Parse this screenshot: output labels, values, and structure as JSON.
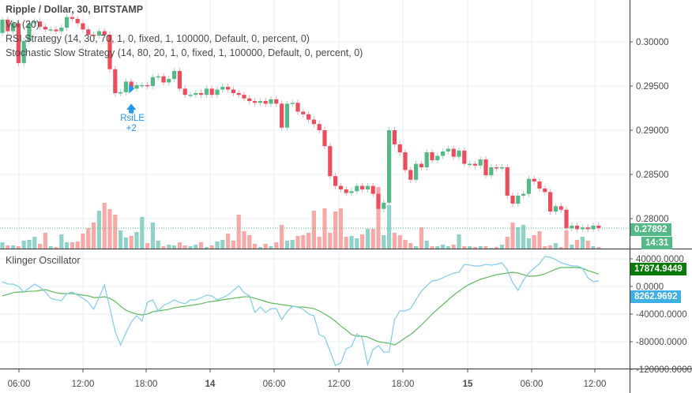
{
  "legend": {
    "title": "Ripple / Dollar, 30, BITSTAMP",
    "vol": "Vol (20)",
    "rsi_strategy": "RSI Strategy (14, 30, 70, 1, 0, fixed, 1, 100000, Default, 0, percent, 0)",
    "stoch_strategy": "Stochastic Slow Strategy (14, 80, 20, 1, 0, fixed, 1, 100000, Default, 0, percent, 0)",
    "oscillator": "Klinger Oscillator"
  },
  "colors": {
    "up": "#53b987",
    "down": "#eb4d5c",
    "vol_up": "#8fd3c8",
    "vol_down": "#f7a9a7",
    "ko": "#7fcbef",
    "signal": "#5fb85f",
    "marker": "#2196f3",
    "grid": "#e9eff3",
    "osc_value_tag": "#0a7a0a",
    "osc_ko_tag": "#3fb0e3"
  },
  "chart_data": [
    {
      "type": "candlestick",
      "price_axis": {
        "ticks": [
          "0.30000",
          "0.29500",
          "0.29000",
          "0.28500",
          "0.28000"
        ],
        "tick_values": [
          0.3,
          0.295,
          0.29,
          0.285,
          0.28
        ]
      },
      "time_axis": {
        "ticks": [
          {
            "label": "06:00",
            "bold": false
          },
          {
            "label": "12:00",
            "bold": false
          },
          {
            "label": "18:00",
            "bold": false
          },
          {
            "label": "14",
            "bold": true
          },
          {
            "label": "06:00",
            "bold": false
          },
          {
            "label": "12:00",
            "bold": false
          },
          {
            "label": "18:00",
            "bold": false
          },
          {
            "label": "15",
            "bold": true
          },
          {
            "label": "06:00",
            "bold": false
          },
          {
            "label": "12:00",
            "bold": false
          }
        ]
      },
      "open": [
        0.301,
        0.3025,
        0.3012,
        0.3021,
        0.2976,
        0.3001,
        0.3021,
        0.3023,
        0.3017,
        0.3014,
        0.3014,
        0.3012,
        0.3016,
        0.3028,
        0.3026,
        0.3021,
        0.3014,
        0.3008,
        0.3007,
        0.3012,
        0.3008,
        0.2969,
        0.2942,
        0.2943,
        0.2955,
        0.2947,
        0.2951,
        0.2951,
        0.295,
        0.296,
        0.2961,
        0.2954,
        0.2958,
        0.2967,
        0.2947,
        0.294,
        0.294,
        0.2942,
        0.294,
        0.2947,
        0.294,
        0.2946,
        0.2949,
        0.2946,
        0.2942,
        0.294,
        0.2936,
        0.2933,
        0.2931,
        0.2933,
        0.293,
        0.2935,
        0.293,
        0.2903,
        0.293,
        0.2931,
        0.2921,
        0.2918,
        0.2912,
        0.2907,
        0.29,
        0.2882,
        0.2848,
        0.2837,
        0.2833,
        0.2829,
        0.2831,
        0.2837,
        0.2833,
        0.2837,
        0.2828,
        0.2811,
        0.2818,
        0.29,
        0.2884,
        0.2875,
        0.2855,
        0.2844,
        0.2862,
        0.2858,
        0.2875,
        0.2866,
        0.2871,
        0.2876,
        0.2879,
        0.287,
        0.2877,
        0.2862,
        0.2862,
        0.286,
        0.2867,
        0.2849,
        0.2858,
        0.2857,
        0.2858,
        0.2826,
        0.2817,
        0.2826,
        0.2828,
        0.2845,
        0.2842,
        0.2834,
        0.283,
        0.2808,
        0.2814,
        0.281,
        0.2789,
        0.2792,
        0.2788,
        0.279,
        0.2788,
        0.2792
      ],
      "close": [
        0.3025,
        0.3012,
        0.3021,
        0.2976,
        0.3001,
        0.3021,
        0.3023,
        0.3017,
        0.3014,
        0.3014,
        0.3012,
        0.3016,
        0.3028,
        0.3026,
        0.3021,
        0.3014,
        0.3008,
        0.3007,
        0.3012,
        0.3008,
        0.2969,
        0.2942,
        0.2943,
        0.2955,
        0.2947,
        0.2951,
        0.2951,
        0.295,
        0.296,
        0.2961,
        0.2954,
        0.2958,
        0.2967,
        0.2947,
        0.294,
        0.294,
        0.2942,
        0.294,
        0.2947,
        0.294,
        0.2946,
        0.2949,
        0.2946,
        0.2942,
        0.294,
        0.2936,
        0.2933,
        0.2931,
        0.2933,
        0.293,
        0.2935,
        0.293,
        0.2903,
        0.293,
        0.2931,
        0.2921,
        0.2918,
        0.2912,
        0.2907,
        0.29,
        0.2882,
        0.2848,
        0.2837,
        0.2833,
        0.2829,
        0.2831,
        0.2837,
        0.2833,
        0.2837,
        0.2828,
        0.2811,
        0.2818,
        0.29,
        0.2884,
        0.2875,
        0.2855,
        0.2844,
        0.2862,
        0.2858,
        0.2875,
        0.2866,
        0.2871,
        0.2876,
        0.2879,
        0.287,
        0.2877,
        0.2862,
        0.2862,
        0.286,
        0.2867,
        0.2849,
        0.2858,
        0.2857,
        0.2858,
        0.2826,
        0.2817,
        0.2826,
        0.2828,
        0.2845,
        0.2842,
        0.2834,
        0.283,
        0.2808,
        0.2814,
        0.281,
        0.2789,
        0.2792,
        0.2788,
        0.279,
        0.2788,
        0.2792,
        0.27892
      ],
      "volume": [
        8,
        4,
        4,
        3,
        10,
        11,
        15,
        6,
        20,
        3,
        2,
        18,
        8,
        8,
        9,
        19,
        26,
        33,
        48,
        58,
        50,
        43,
        23,
        14,
        16,
        21,
        40,
        7,
        33,
        10,
        3,
        5,
        4,
        8,
        4,
        3,
        5,
        8,
        2,
        4,
        9,
        11,
        19,
        10,
        43,
        22,
        17,
        6,
        2,
        6,
        3,
        8,
        30,
        10,
        11,
        16,
        17,
        20,
        48,
        15,
        51,
        20,
        47,
        51,
        15,
        16,
        13,
        18,
        25,
        25,
        78,
        17,
        55,
        20,
        17,
        11,
        7,
        3,
        27,
        10,
        3,
        3,
        5,
        3,
        5,
        18,
        3,
        3,
        2,
        3,
        3,
        1,
        2,
        5,
        15,
        33,
        27,
        30,
        13,
        17,
        22,
        3,
        4,
        7,
        2,
        23,
        5,
        11,
        15,
        10,
        3,
        2
      ],
      "last_price": "0.27892",
      "countdown": "14:31",
      "signal": {
        "label": "RsiLE",
        "qty": "+2",
        "bar": 24
      }
    },
    {
      "type": "line",
      "title": "Klinger Oscillator",
      "y_axis": {
        "ticks": [
          "40000.0000",
          "0.0000",
          "-40000.0000",
          "-80000.0000",
          "-120000.0000"
        ],
        "tick_values": [
          40000,
          0,
          -40000,
          -80000,
          -120000
        ]
      },
      "ko": [
        6900,
        3400,
        3400,
        0,
        -8000,
        -2300,
        3400,
        -1100,
        -8000,
        -17100,
        -19400,
        -20600,
        -10300,
        -8000,
        -12600,
        -17100,
        -22900,
        -33100,
        -16000,
        2300,
        -30900,
        -65200,
        -84600,
        -67400,
        -51400,
        -42300,
        -50300,
        -22900,
        -19400,
        -35400,
        -27400,
        -24000,
        -19400,
        -22900,
        -25100,
        -19400,
        -19400,
        -16000,
        -12600,
        -13700,
        -19400,
        -16000,
        -12600,
        -5700,
        1100,
        -9100,
        -13700,
        -37700,
        -29700,
        -37700,
        -32000,
        -32000,
        -48000,
        -36600,
        -28600,
        -29700,
        -33100,
        -40000,
        -42300,
        -69700,
        -73200,
        -93700,
        -114300,
        -110900,
        -90300,
        -86900,
        -68600,
        -74300,
        -113200,
        -91400,
        -85700,
        -94900,
        -94900,
        -48000,
        -35400,
        -35400,
        -32000,
        -19400,
        -6900,
        1100,
        8000,
        9100,
        12600,
        16000,
        19400,
        20600,
        32000,
        30900,
        29700,
        29700,
        32000,
        30900,
        32000,
        34300,
        24000,
        5700,
        -5700,
        9100,
        19400,
        26300,
        33100,
        43400,
        42300,
        38900,
        34300,
        32000,
        29700,
        29700,
        26300,
        12600,
        6900,
        8263
      ],
      "signal": [
        -13700,
        -11400,
        -9100,
        -8000,
        -8000,
        -6900,
        -6900,
        -5700,
        -4600,
        -6900,
        -9100,
        -10300,
        -10300,
        -10300,
        -11400,
        -12600,
        -13700,
        -16000,
        -16000,
        -14900,
        -17100,
        -21700,
        -28600,
        -34300,
        -37700,
        -40000,
        -41100,
        -40000,
        -36600,
        -35400,
        -34300,
        -33100,
        -30900,
        -29700,
        -28600,
        -27400,
        -26300,
        -25100,
        -22900,
        -21700,
        -20600,
        -19400,
        -18300,
        -17100,
        -16000,
        -14900,
        -14900,
        -17100,
        -19400,
        -21700,
        -24000,
        -25100,
        -26300,
        -27400,
        -28600,
        -29700,
        -29700,
        -30900,
        -32000,
        -35400,
        -40000,
        -44600,
        -50300,
        -57200,
        -62900,
        -69700,
        -72000,
        -72000,
        -73200,
        -76600,
        -80000,
        -81200,
        -82300,
        -84600,
        -80000,
        -74300,
        -69700,
        -62900,
        -56000,
        -48000,
        -40000,
        -33100,
        -26300,
        -19400,
        -12600,
        -6900,
        -1100,
        3400,
        6900,
        10300,
        12600,
        14900,
        17100,
        18300,
        19400,
        20600,
        19400,
        17100,
        14900,
        14900,
        16000,
        18300,
        21700,
        25100,
        27400,
        27400,
        27400,
        27400,
        26300,
        22900,
        20600,
        17875
      ],
      "last_signal": "17874.9449",
      "last_ko": "8262.9692"
    }
  ]
}
